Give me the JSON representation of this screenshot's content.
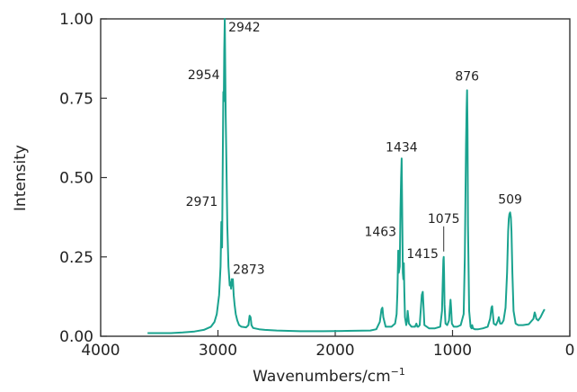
{
  "chart_data": {
    "type": "line",
    "title": "",
    "xlabel": "Wavenumbers/cm",
    "xlabel_sup": "−1",
    "ylabel": "Intensity",
    "xlim": [
      4000,
      0
    ],
    "ylim": [
      0,
      1.0
    ],
    "x_ticks": [
      4000,
      3000,
      2000,
      1000,
      0
    ],
    "x_tick_labels": [
      "4000",
      "3000",
      "2000",
      "1000",
      "0"
    ],
    "y_ticks": [
      0,
      0.25,
      0.5,
      0.75,
      1.0
    ],
    "y_tick_labels": [
      "0.00",
      "0.25",
      "0.50",
      "0.75",
      "1.00"
    ],
    "grid": false,
    "line_color": "#1aa38f",
    "series": [
      {
        "x": [
          3600,
          3400,
          3300,
          3200,
          3120,
          3060,
          3030,
          3010,
          2990,
          2978,
          2971,
          2965,
          2960,
          2954,
          2950,
          2946,
          2942,
          2938,
          2934,
          2928,
          2920,
          2910,
          2900,
          2893,
          2888,
          2883,
          2878,
          2873,
          2866,
          2858,
          2848,
          2835,
          2820,
          2800,
          2760,
          2740,
          2730,
          2722,
          2714,
          2700,
          2650,
          2600,
          2500,
          2300,
          2100,
          1900,
          1700,
          1650,
          1620,
          1605,
          1598,
          1590,
          1570,
          1520,
          1490,
          1477,
          1470,
          1463,
          1458,
          1450,
          1444,
          1438,
          1434,
          1430,
          1424,
          1419,
          1415,
          1411,
          1405,
          1395,
          1388,
          1382,
          1372,
          1350,
          1320,
          1308,
          1300,
          1292,
          1280,
          1262,
          1254,
          1248,
          1240,
          1200,
          1150,
          1105,
          1090,
          1082,
          1078,
          1075,
          1072,
          1068,
          1060,
          1045,
          1030,
          1022,
          1017,
          1012,
          1005,
          990,
          960,
          930,
          905,
          895,
          885,
          880,
          876,
          872,
          868,
          858,
          846,
          838,
          832,
          825,
          810,
          780,
          740,
          700,
          680,
          668,
          662,
          656,
          648,
          630,
          612,
          605,
          600,
          594,
          580,
          565,
          548,
          535,
          526,
          520,
          515,
          509,
          503,
          497,
          490,
          480,
          462,
          440,
          400,
          350,
          310,
          300,
          295,
          285,
          270,
          250,
          230,
          215
        ],
        "y": [
          0.01,
          0.01,
          0.012,
          0.015,
          0.02,
          0.03,
          0.045,
          0.07,
          0.13,
          0.22,
          0.36,
          0.28,
          0.5,
          0.77,
          0.74,
          0.9,
          1.0,
          0.85,
          0.7,
          0.55,
          0.35,
          0.22,
          0.16,
          0.17,
          0.15,
          0.18,
          0.16,
          0.18,
          0.13,
          0.1,
          0.07,
          0.05,
          0.035,
          0.03,
          0.028,
          0.035,
          0.065,
          0.06,
          0.035,
          0.026,
          0.022,
          0.02,
          0.018,
          0.016,
          0.016,
          0.017,
          0.018,
          0.022,
          0.045,
          0.085,
          0.09,
          0.06,
          0.03,
          0.03,
          0.04,
          0.07,
          0.14,
          0.27,
          0.2,
          0.22,
          0.4,
          0.5,
          0.56,
          0.42,
          0.2,
          0.18,
          0.23,
          0.14,
          0.06,
          0.035,
          0.05,
          0.08,
          0.04,
          0.03,
          0.03,
          0.04,
          0.03,
          0.03,
          0.035,
          0.13,
          0.14,
          0.1,
          0.035,
          0.025,
          0.025,
          0.03,
          0.08,
          0.19,
          0.24,
          0.25,
          0.2,
          0.1,
          0.04,
          0.035,
          0.05,
          0.09,
          0.115,
          0.09,
          0.04,
          0.03,
          0.03,
          0.035,
          0.07,
          0.25,
          0.6,
          0.72,
          0.775,
          0.65,
          0.35,
          0.08,
          0.03,
          0.025,
          0.035,
          0.025,
          0.022,
          0.022,
          0.025,
          0.03,
          0.055,
          0.09,
          0.095,
          0.07,
          0.04,
          0.035,
          0.05,
          0.06,
          0.05,
          0.04,
          0.04,
          0.05,
          0.09,
          0.2,
          0.33,
          0.37,
          0.385,
          0.39,
          0.375,
          0.33,
          0.2,
          0.08,
          0.04,
          0.035,
          0.035,
          0.038,
          0.055,
          0.075,
          0.07,
          0.055,
          0.05,
          0.06,
          0.075,
          0.085
        ]
      }
    ],
    "annotations": [
      {
        "text": "2942",
        "x": 2942,
        "y": 1.0,
        "leader": false
      },
      {
        "text": "2954",
        "x": 2954,
        "y": 0.77,
        "leader": false
      },
      {
        "text": "2971",
        "x": 2971,
        "y": 0.36,
        "leader": false
      },
      {
        "text": "2873",
        "x": 2873,
        "y": 0.18,
        "leader": false
      },
      {
        "text": "1434",
        "x": 1434,
        "y": 0.56,
        "leader": false
      },
      {
        "text": "1463",
        "x": 1463,
        "y": 0.27,
        "leader": false
      },
      {
        "text": "1415",
        "x": 1415,
        "y": 0.23,
        "leader": false
      },
      {
        "text": "1075",
        "x": 1075,
        "y": 0.25,
        "leader": true
      },
      {
        "text": "876",
        "x": 876,
        "y": 0.775,
        "leader": false
      },
      {
        "text": "509",
        "x": 509,
        "y": 0.39,
        "leader": false
      }
    ]
  }
}
